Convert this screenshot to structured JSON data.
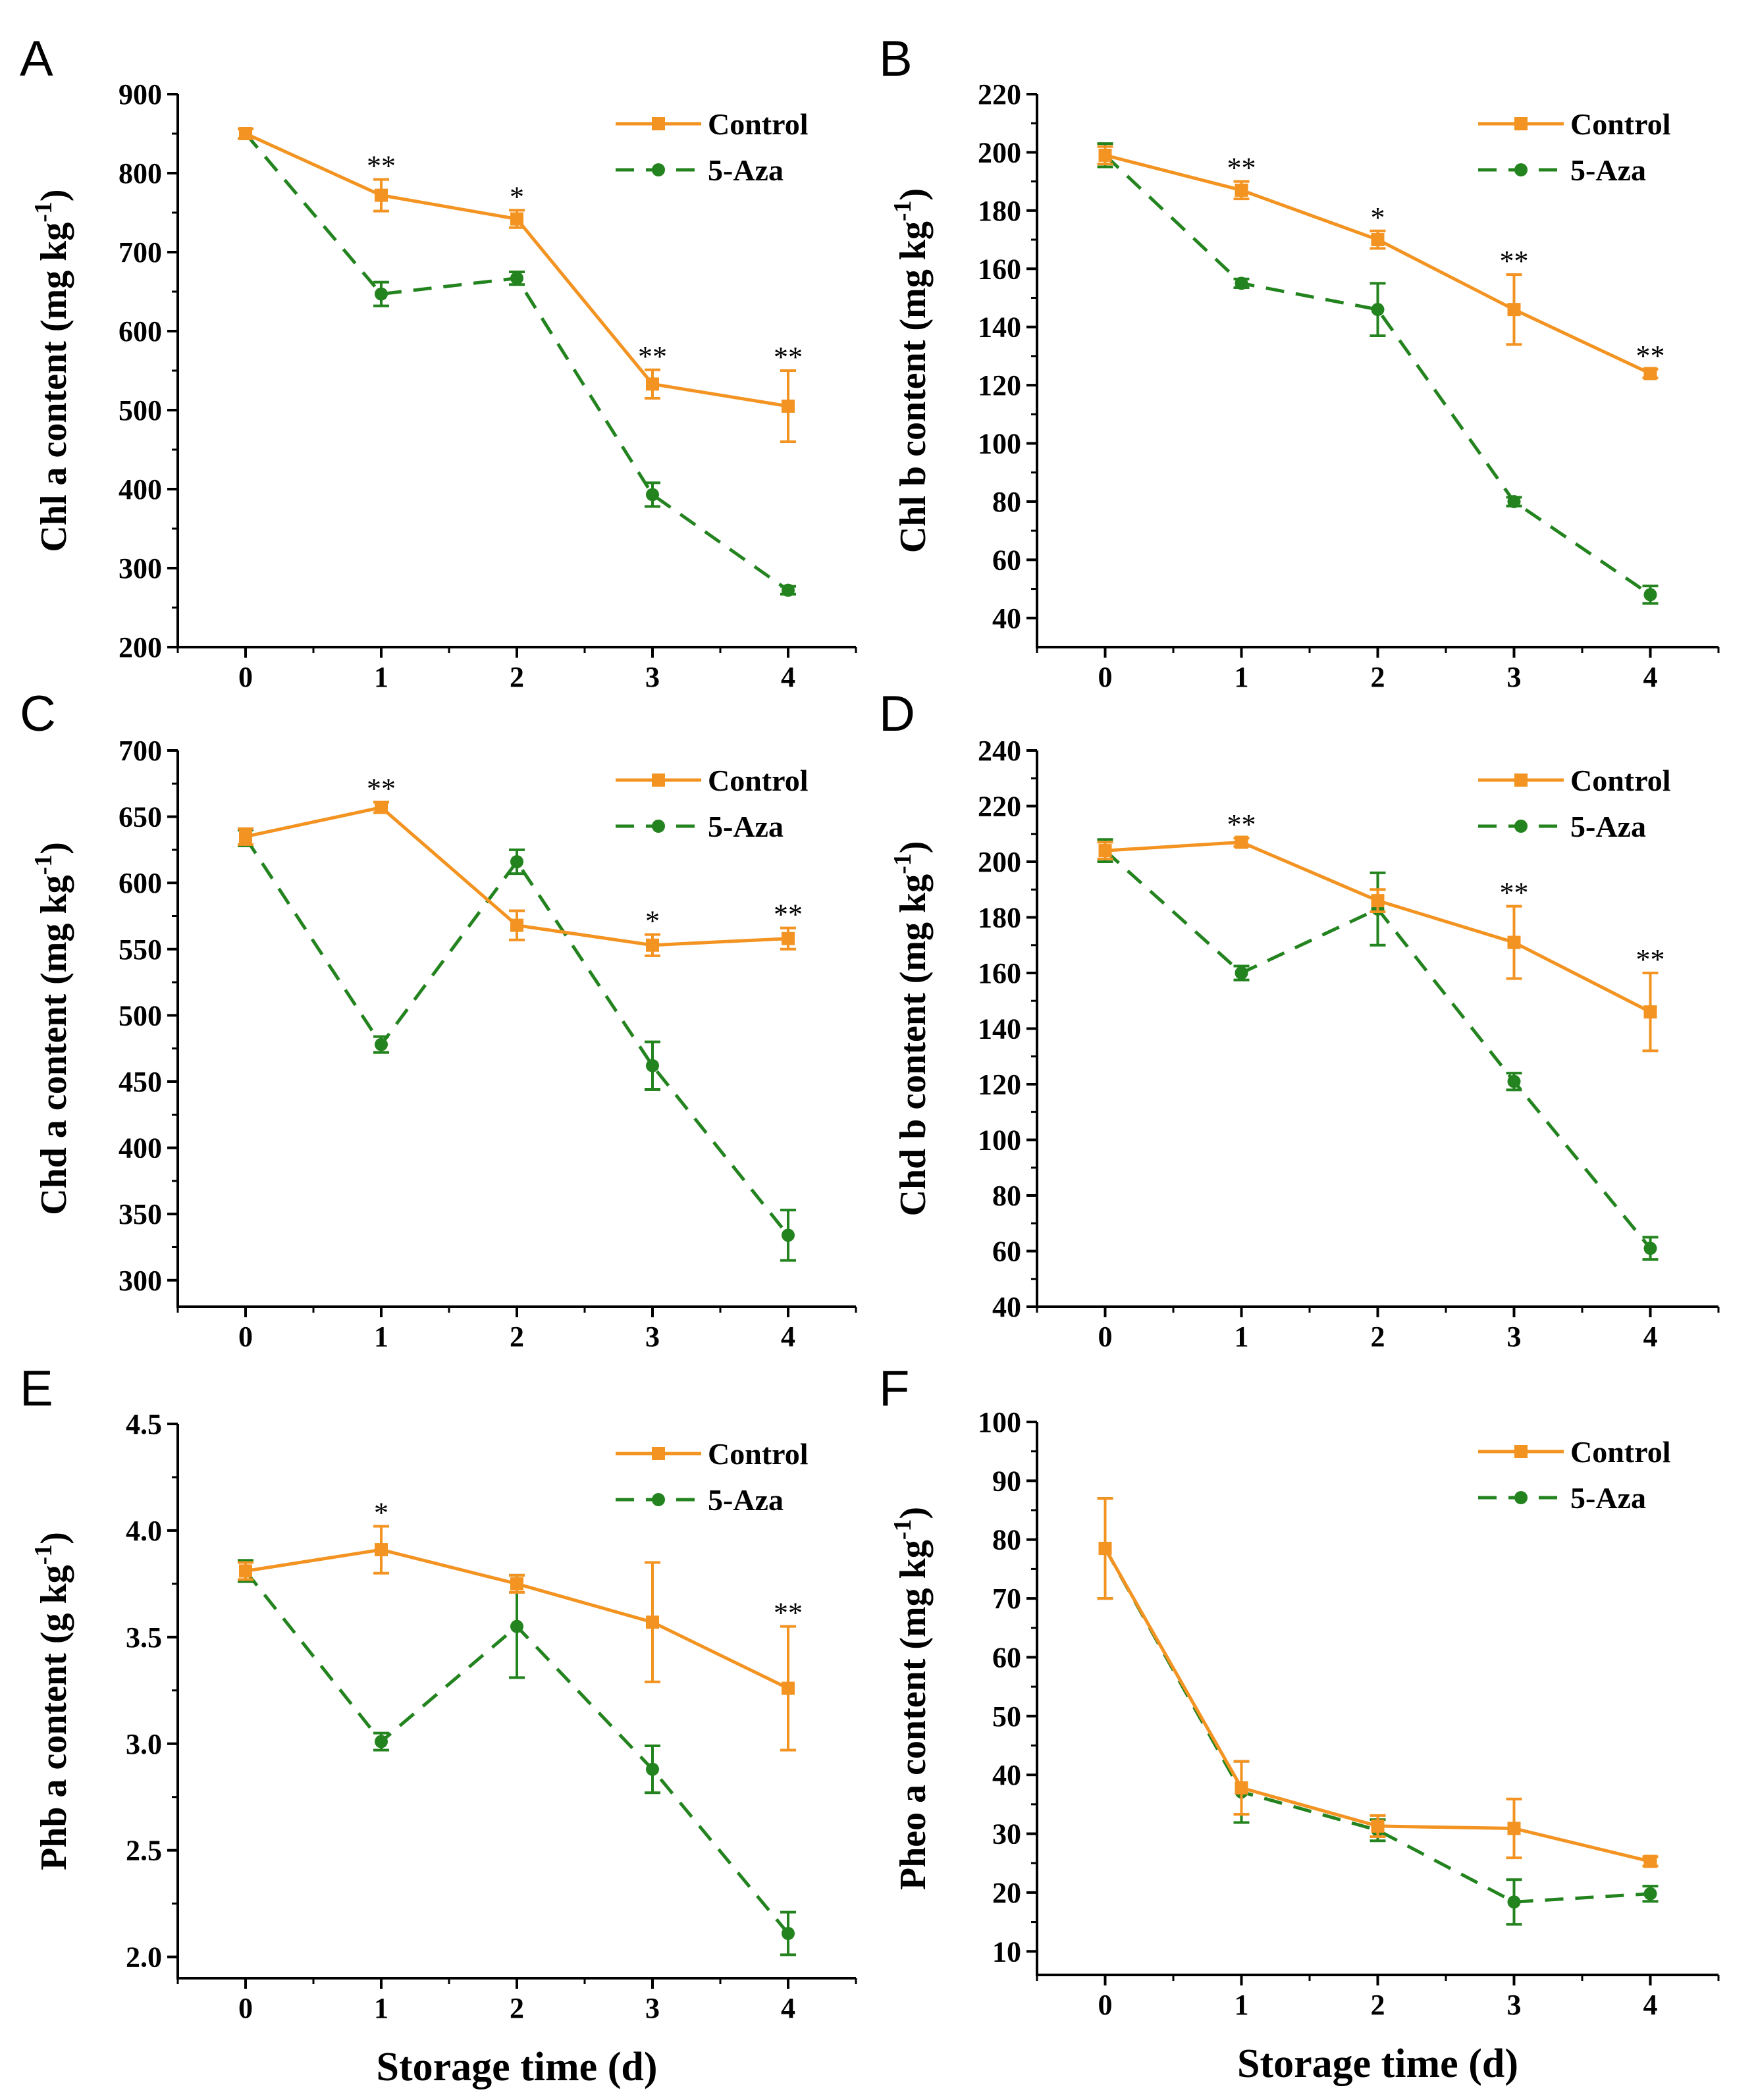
{
  "figure": {
    "x_axis_title": "Storage time (d)",
    "legend": {
      "control_label": "Control",
      "aza_label": "5-Aza"
    },
    "colors": {
      "control": "#F39321",
      "aza": "#23831E",
      "axis": "#000000"
    }
  },
  "chart_data": [
    {
      "panel": "A",
      "type": "line",
      "ylabel_main": "Chl a content (mg kg",
      "ylabel_sup": "-1",
      "ylabel_close": ")",
      "x": [
        0,
        1,
        2,
        3,
        4
      ],
      "xlim": [
        -0.5,
        4.5
      ],
      "ylim": [
        200,
        900
      ],
      "yticks": [
        200,
        300,
        400,
        500,
        600,
        700,
        800,
        900
      ],
      "series": [
        {
          "name": "Control",
          "values": [
            850,
            772,
            742,
            533,
            505
          ],
          "errors": [
            6,
            20,
            11,
            18,
            45
          ]
        },
        {
          "name": "5-Aza",
          "values": [
            850,
            647,
            667,
            393,
            272
          ],
          "errors": [
            6,
            15,
            8,
            15,
            5
          ]
        }
      ],
      "significance": [
        "",
        "**",
        "*",
        "**",
        "**"
      ]
    },
    {
      "panel": "B",
      "type": "line",
      "ylabel_main": "Chl b content (mg kg",
      "ylabel_sup": "-1",
      "ylabel_close": ")",
      "x": [
        0,
        1,
        2,
        3,
        4
      ],
      "xlim": [
        -0.5,
        4.5
      ],
      "ylim": [
        30,
        220
      ],
      "yticks": [
        40,
        60,
        80,
        100,
        120,
        140,
        160,
        180,
        200,
        220
      ],
      "series": [
        {
          "name": "Control",
          "values": [
            199,
            187,
            170,
            146,
            124
          ],
          "errors": [
            3,
            3,
            3,
            12,
            1.5
          ]
        },
        {
          "name": "5-Aza",
          "values": [
            199,
            155,
            146,
            80,
            48
          ],
          "errors": [
            4,
            1.5,
            9,
            1.5,
            3
          ]
        }
      ],
      "significance": [
        "",
        "**",
        "*",
        "**",
        "**"
      ]
    },
    {
      "panel": "C",
      "type": "line",
      "ylabel_main": "Chd a content (mg kg",
      "ylabel_sup": "-1",
      "ylabel_close": ")",
      "x": [
        0,
        1,
        2,
        3,
        4
      ],
      "xlim": [
        -0.5,
        4.5
      ],
      "ylim": [
        280,
        700
      ],
      "yticks": [
        300,
        350,
        400,
        450,
        500,
        550,
        600,
        650,
        700
      ],
      "series": [
        {
          "name": "Control",
          "values": [
            635,
            657,
            568,
            553,
            558
          ],
          "errors": [
            6,
            4,
            11,
            8,
            8
          ]
        },
        {
          "name": "5-Aza",
          "values": [
            634,
            478,
            616,
            462,
            334
          ],
          "errors": [
            6,
            6,
            9,
            18,
            19
          ]
        }
      ],
      "significance": [
        "",
        "**",
        "",
        "*",
        "**"
      ]
    },
    {
      "panel": "D",
      "type": "line",
      "ylabel_main": "Chd b content (mg kg",
      "ylabel_sup": "-1",
      "ylabel_close": ")",
      "x": [
        0,
        1,
        2,
        3,
        4
      ],
      "xlim": [
        -0.5,
        4.5
      ],
      "ylim": [
        40,
        240
      ],
      "yticks": [
        40,
        60,
        80,
        100,
        120,
        140,
        160,
        180,
        200,
        220,
        240
      ],
      "series": [
        {
          "name": "Control",
          "values": [
            204,
            207,
            186,
            171,
            146
          ],
          "errors": [
            3,
            1.5,
            4,
            13,
            14
          ]
        },
        {
          "name": "5-Aza",
          "values": [
            204,
            160,
            183,
            121,
            61
          ],
          "errors": [
            4,
            2.5,
            13,
            3,
            4
          ]
        }
      ],
      "significance": [
        "",
        "**",
        "",
        "**",
        "**"
      ]
    },
    {
      "panel": "E",
      "type": "line",
      "ylabel_main": "Phb a content (g kg",
      "ylabel_sup": "-1",
      "ylabel_close": ")",
      "x": [
        0,
        1,
        2,
        3,
        4
      ],
      "xlim": [
        -0.5,
        4.5
      ],
      "ylim": [
        1.9,
        4.5
      ],
      "yticks": [
        2.0,
        2.5,
        3.0,
        3.5,
        4.0,
        4.5
      ],
      "ytick_decimals": 1,
      "series": [
        {
          "name": "Control",
          "values": [
            3.81,
            3.91,
            3.75,
            3.57,
            3.26
          ],
          "errors": [
            0.04,
            0.11,
            0.04,
            0.28,
            0.29
          ]
        },
        {
          "name": "5-Aza",
          "values": [
            3.81,
            3.01,
            3.55,
            2.88,
            2.11
          ],
          "errors": [
            0.05,
            0.04,
            0.24,
            0.11,
            0.1
          ]
        }
      ],
      "significance": [
        "",
        "*",
        "",
        "",
        "**"
      ]
    },
    {
      "panel": "F",
      "type": "line",
      "ylabel_main": "Pheo a content (mg kg",
      "ylabel_sup": "-1",
      "ylabel_close": ")",
      "x": [
        0,
        1,
        2,
        3,
        4
      ],
      "xlim": [
        -0.5,
        4.5
      ],
      "ylim": [
        6,
        100
      ],
      "yticks": [
        10,
        20,
        30,
        40,
        50,
        60,
        70,
        80,
        90,
        100
      ],
      "series": [
        {
          "name": "Control",
          "values": [
            78.5,
            37.8,
            31.3,
            30.9,
            25.3
          ],
          "errors": [
            8.5,
            4.5,
            1.8,
            5,
            0.8
          ]
        },
        {
          "name": "5-Aza",
          "values": [
            78.5,
            37.1,
            30.6,
            18.4,
            19.8
          ],
          "errors": [
            8.5,
            5.2,
            1.8,
            3.8,
            1.3
          ]
        }
      ],
      "significance": [
        "",
        "",
        "",
        "",
        ""
      ]
    }
  ]
}
